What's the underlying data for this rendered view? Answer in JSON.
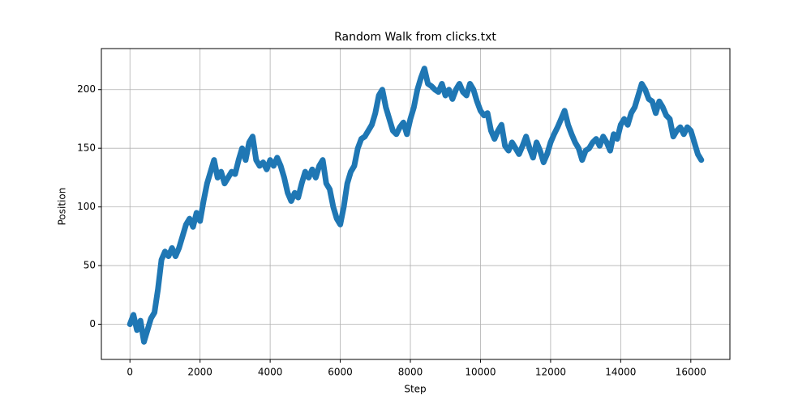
{
  "chart_data": {
    "type": "line",
    "title": "Random Walk from clicks.txt",
    "x_label": "Step",
    "y_label": "Position",
    "x": [
      0,
      100,
      200,
      300,
      400,
      500,
      600,
      700,
      800,
      900,
      1000,
      1100,
      1200,
      1300,
      1400,
      1500,
      1600,
      1700,
      1800,
      1900,
      2000,
      2100,
      2200,
      2300,
      2400,
      2500,
      2600,
      2700,
      2800,
      2900,
      3000,
      3100,
      3200,
      3300,
      3400,
      3500,
      3600,
      3700,
      3800,
      3900,
      4000,
      4100,
      4200,
      4300,
      4400,
      4500,
      4600,
      4700,
      4800,
      4900,
      5000,
      5100,
      5200,
      5300,
      5400,
      5500,
      5600,
      5700,
      5800,
      5900,
      6000,
      6100,
      6200,
      6300,
      6400,
      6500,
      6600,
      6700,
      6800,
      6900,
      7000,
      7100,
      7200,
      7300,
      7400,
      7500,
      7600,
      7700,
      7800,
      7900,
      8000,
      8100,
      8200,
      8300,
      8400,
      8500,
      8600,
      8700,
      8800,
      8900,
      9000,
      9100,
      9200,
      9300,
      9400,
      9500,
      9600,
      9700,
      9800,
      9900,
      10000,
      10100,
      10200,
      10300,
      10400,
      10500,
      10600,
      10700,
      10800,
      10900,
      11000,
      11100,
      11200,
      11300,
      11400,
      11500,
      11600,
      11700,
      11800,
      11900,
      12000,
      12100,
      12200,
      12300,
      12400,
      12500,
      12600,
      12700,
      12800,
      12900,
      13000,
      13100,
      13200,
      13300,
      13400,
      13500,
      13600,
      13700,
      13800,
      13900,
      14000,
      14100,
      14200,
      14300,
      14400,
      14500,
      14600,
      14700,
      14800,
      14900,
      15000,
      15100,
      15200,
      15300,
      15400,
      15500,
      15600,
      15700,
      15800,
      15900,
      16000,
      16100,
      16200,
      16300
    ],
    "series": [
      {
        "color": "#1f77b4",
        "values": [
          0,
          8,
          -5,
          3,
          -15,
          -5,
          5,
          10,
          30,
          55,
          62,
          58,
          65,
          58,
          65,
          75,
          85,
          90,
          83,
          95,
          88,
          105,
          120,
          130,
          140,
          125,
          130,
          120,
          125,
          130,
          128,
          140,
          150,
          140,
          155,
          160,
          140,
          135,
          138,
          132,
          140,
          135,
          142,
          135,
          125,
          112,
          105,
          112,
          108,
          120,
          130,
          125,
          132,
          125,
          135,
          140,
          120,
          115,
          100,
          90,
          85,
          100,
          120,
          130,
          135,
          150,
          158,
          160,
          165,
          170,
          180,
          195,
          200,
          185,
          175,
          165,
          162,
          168,
          172,
          162,
          175,
          185,
          200,
          210,
          218,
          205,
          203,
          200,
          198,
          205,
          195,
          200,
          192,
          200,
          205,
          198,
          195,
          205,
          200,
          190,
          182,
          178,
          180,
          165,
          158,
          165,
          170,
          152,
          148,
          155,
          150,
          145,
          152,
          160,
          150,
          142,
          155,
          148,
          138,
          145,
          155,
          162,
          168,
          175,
          182,
          170,
          162,
          155,
          150,
          140,
          148,
          150,
          155,
          158,
          152,
          160,
          155,
          148,
          162,
          158,
          170,
          175,
          170,
          180,
          185,
          195,
          205,
          200,
          192,
          190,
          180,
          190,
          185,
          178,
          175,
          160,
          165,
          168,
          162,
          168,
          165,
          155,
          145,
          140
        ]
      }
    ],
    "xlim": [
      -815,
      17115
    ],
    "ylim": [
      -30,
      235
    ],
    "xticks": [
      0,
      2000,
      4000,
      6000,
      8000,
      10000,
      12000,
      14000,
      16000
    ],
    "yticks": [
      0,
      50,
      100,
      150,
      200
    ],
    "grid": true
  }
}
